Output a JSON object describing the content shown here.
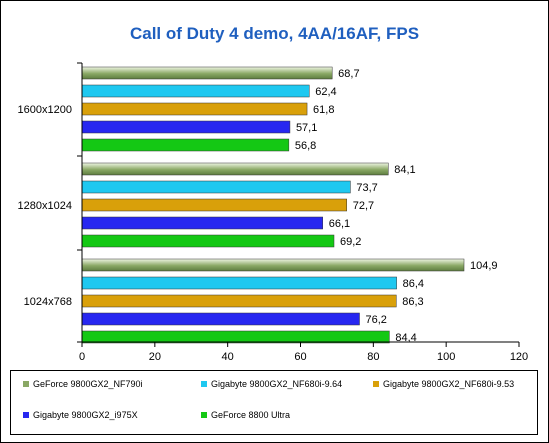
{
  "chart_data": {
    "type": "bar",
    "orientation": "horizontal",
    "title": "Call of Duty 4 demo, 4AA/16AF, FPS",
    "categories": [
      "1600x1200",
      "1280x1024",
      "1024x768"
    ],
    "series": [
      {
        "name": "GeForce 9800GX2_NF790i",
        "color": "#8aa865",
        "values": [
          68.7,
          84.1,
          104.9
        ],
        "labels": [
          "68,7",
          "84,1",
          "104,9"
        ]
      },
      {
        "name": "Gigabyte 9800GX2_NF680i-9.64",
        "color": "#1ec8f0",
        "values": [
          62.4,
          73.7,
          86.4
        ],
        "labels": [
          "62,4",
          "73,7",
          "86,4"
        ]
      },
      {
        "name": "Gigabyte 9800GX2_NF680i-9.53",
        "color": "#d9a00a",
        "values": [
          61.8,
          72.7,
          86.3
        ],
        "labels": [
          "61,8",
          "72,7",
          "86,3"
        ]
      },
      {
        "name": "Gigabyte 9800GX2_i975X",
        "color": "#2727f0",
        "values": [
          57.1,
          66.1,
          76.2
        ],
        "labels": [
          "57,1",
          "66,1",
          "76,2"
        ]
      },
      {
        "name": "GeForce 8800 Ultra",
        "color": "#14c814",
        "values": [
          56.8,
          69.2,
          84.4
        ],
        "labels": [
          "56,8",
          "69,2",
          "84,4"
        ]
      }
    ],
    "xlim": [
      0,
      120
    ],
    "xticks": [
      0,
      20,
      40,
      60,
      80,
      100,
      120
    ],
    "grid": false,
    "legend_position": "bottom"
  }
}
